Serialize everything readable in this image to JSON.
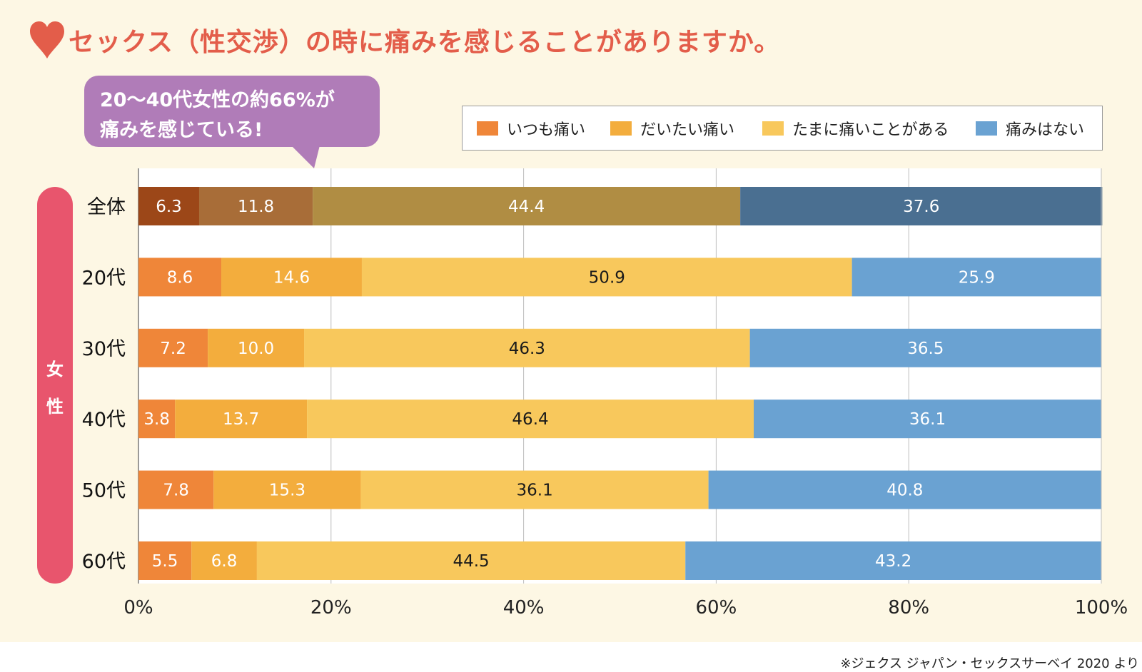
{
  "title": "セックス（性交渉）の時に痛みを感じることがありますか。",
  "callout": {
    "line1": "20〜40代女性の約66%が",
    "line2": "痛みを感じている!"
  },
  "gender_label": [
    "女",
    "性"
  ],
  "source": "※ジェクス ジャパン・セックスサーベイ 2020 より",
  "colors": {
    "heart": "#e35d4a",
    "series": [
      "#ef8639",
      "#f3ad3d",
      "#f8c85c",
      "#6aa2d2"
    ],
    "overall_row": [
      "#9c4718",
      "#a86d38",
      "#b08d43",
      "#4a6f91"
    ]
  },
  "chart_data": {
    "type": "bar",
    "orientation": "horizontal",
    "stacked": true,
    "title": "セックス（性交渉）の時に痛みを感じることがありますか。",
    "categories": [
      "全体",
      "20代",
      "30代",
      "40代",
      "50代",
      "60代"
    ],
    "series": [
      {
        "name": "いつも痛い",
        "values": [
          6.3,
          8.6,
          7.2,
          3.8,
          7.8,
          5.5
        ]
      },
      {
        "name": "だいたい痛い",
        "values": [
          11.8,
          14.6,
          10.0,
          13.7,
          15.3,
          6.8
        ]
      },
      {
        "name": "たまに痛いことがある",
        "values": [
          44.4,
          50.9,
          46.3,
          46.4,
          36.1,
          44.5
        ]
      },
      {
        "name": "痛みはない",
        "values": [
          37.6,
          25.9,
          36.5,
          36.1,
          40.8,
          43.2
        ]
      }
    ],
    "value_labels": [
      [
        "6.3",
        "11.8",
        "44.4",
        "37.6"
      ],
      [
        "8.6",
        "14.6",
        "50.9",
        "25.9"
      ],
      [
        "7.2",
        "10.0",
        "46.3",
        "36.5"
      ],
      [
        "3.8",
        "13.7",
        "46.4",
        "36.1"
      ],
      [
        "7.8",
        "15.3",
        "36.1",
        "40.8"
      ],
      [
        "5.5",
        "6.8",
        "44.5",
        "43.2"
      ]
    ],
    "xlim": [
      0,
      100
    ],
    "x_ticks": [
      "0%",
      "20%",
      "40%",
      "60%",
      "80%",
      "100%"
    ],
    "grid": true,
    "legend_position": "top-right"
  }
}
